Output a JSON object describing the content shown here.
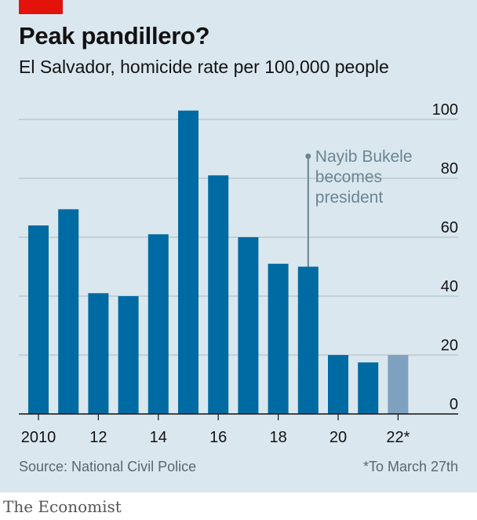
{
  "header": {
    "title": "Peak pandillero?",
    "subtitle": "El Salvador, homicide rate per 100,000 people"
  },
  "footer": {
    "source": "Source: National Civil Police",
    "note": "*To March 27th",
    "brand": "The Economist"
  },
  "colors": {
    "bar": "#006ba2",
    "bar_partial": "#7fa1c0",
    "annotation": "#6a8594",
    "accent": "#e3120b"
  },
  "chart_data": {
    "type": "bar",
    "title": "Peak pandillero?",
    "subtitle": "El Salvador, homicide rate per 100,000 people",
    "categories": [
      "2010",
      "2011",
      "2012",
      "2013",
      "2014",
      "2015",
      "2016",
      "2017",
      "2018",
      "2019",
      "2020",
      "2021",
      "2022"
    ],
    "values": [
      64,
      69.5,
      41,
      40,
      61,
      103,
      81,
      60,
      51,
      50,
      20,
      17.5,
      20
    ],
    "partial_categories": [
      "2022"
    ],
    "x_tick_labels": [
      {
        "category": "2010",
        "label": "2010"
      },
      {
        "category": "2012",
        "label": "12"
      },
      {
        "category": "2014",
        "label": "14"
      },
      {
        "category": "2016",
        "label": "16"
      },
      {
        "category": "2018",
        "label": "18"
      },
      {
        "category": "2020",
        "label": "20"
      },
      {
        "category": "2022",
        "label": "22*"
      }
    ],
    "y_ticks": [
      0,
      20,
      40,
      60,
      80,
      100
    ],
    "ylim": [
      0,
      100
    ],
    "y_axis_side": "right",
    "grid": true,
    "annotation": {
      "category": "2019",
      "lines": [
        "Nayib Bukele",
        "becomes",
        "president"
      ],
      "pointer_top_value": 87.5
    }
  }
}
